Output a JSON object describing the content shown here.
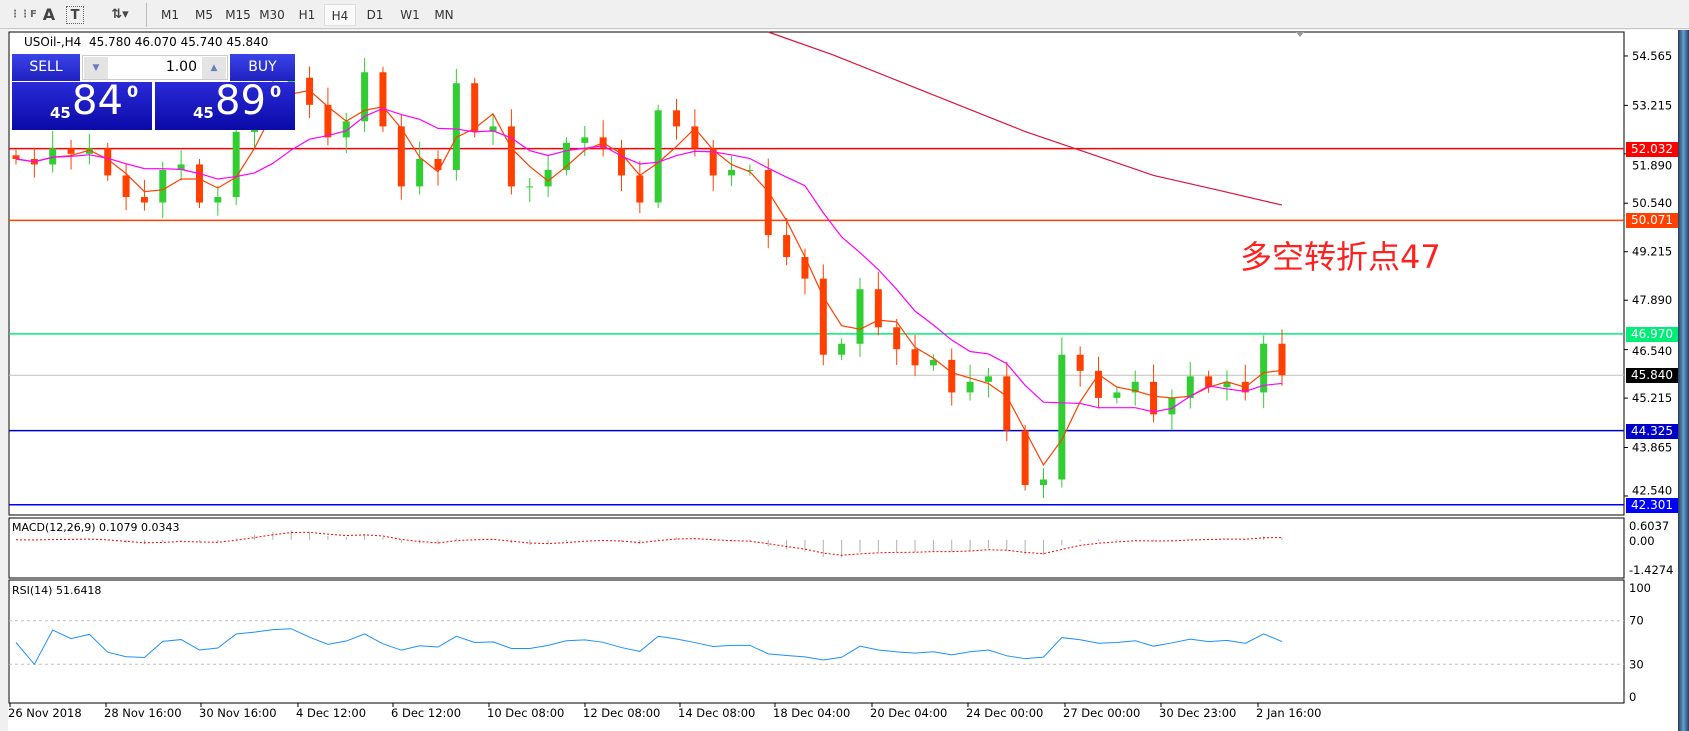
{
  "toolbar": {
    "icons": [
      "grid-icon",
      "text-icon",
      "text-label-icon",
      "arrows-icon"
    ],
    "icon_text": {
      "text": "A",
      "label": "T"
    },
    "timeframes": [
      "M1",
      "M5",
      "M15",
      "M30",
      "H1",
      "H4",
      "D1",
      "W1",
      "MN"
    ],
    "selected": "H4"
  },
  "header": {
    "symbol": "USOil-,H4",
    "ohlc": "45.780 46.070 45.740 45.840"
  },
  "trade_panel": {
    "sell_label": "SELL",
    "buy_label": "BUY",
    "lot": "1.00",
    "sell": {
      "prefix": "45",
      "big": "84",
      "sup": "0"
    },
    "buy": {
      "prefix": "45",
      "big": "89",
      "sup": "0"
    }
  },
  "annotation": "多空转折点47",
  "colors": {
    "bull": "#32cd32",
    "bear": "#ff4000",
    "ma_fast": "#ff4000",
    "ma_mid": "#ff00ff",
    "ma_long": "#dc143c",
    "level_red": "#ff0000",
    "level_orange": "#ff4000",
    "level_green": "#00ff7f",
    "level_blue": "#0000c8",
    "current": "#c0c0c0"
  },
  "chart_data": [
    {
      "type": "candlestick",
      "symbol": "USOil-",
      "timeframe": "H4",
      "ylim": [
        42.02,
        55.22
      ],
      "y_ticks": [
        "54.565",
        "53.215",
        "51.890",
        "50.540",
        "49.215",
        "47.890",
        "46.540",
        "45.215",
        "43.865",
        "42.540"
      ],
      "x_ticks": [
        "26 Nov 2018",
        "28 Nov 16:00",
        "30 Nov 16:00",
        "4 Dec 12:00",
        "6 Dec 12:00",
        "10 Dec 08:00",
        "12 Dec 08:00",
        "14 Dec 08:00",
        "18 Dec 04:00",
        "20 Dec 04:00",
        "24 Dec 00:00",
        "27 Dec 00:00",
        "30 Dec 23:00",
        "2 Jan 16:00"
      ],
      "closes": [
        51.75,
        51.6,
        52.04,
        51.89,
        52.04,
        51.3,
        50.71,
        50.56,
        51.45,
        51.6,
        50.56,
        50.71,
        52.49,
        52.93,
        53.67,
        53.97,
        53.23,
        52.34,
        52.78,
        54.12,
        52.64,
        51.0,
        51.75,
        51.45,
        53.82,
        52.49,
        52.64,
        51.0,
        51.0,
        51.45,
        52.19,
        52.34,
        52.04,
        51.3,
        50.56,
        53.08,
        52.64,
        52.04,
        51.3,
        51.45,
        51.45,
        49.67,
        49.07,
        48.48,
        46.4,
        46.7,
        48.19,
        47.15,
        46.55,
        46.11,
        46.26,
        45.37,
        45.66,
        45.81,
        44.33,
        42.84,
        42.99,
        46.4,
        45.96,
        45.22,
        45.37,
        45.66,
        44.77,
        45.22,
        45.81,
        45.51,
        45.66,
        45.37,
        46.7,
        45.84
      ],
      "ma_long": [
        55.22,
        54.6,
        53.9,
        53.2,
        52.5,
        51.9,
        51.3,
        50.9,
        50.49
      ],
      "levels": [
        {
          "price": "52.032",
          "color": "#ff0000"
        },
        {
          "price": "50.071",
          "color": "#ff4000"
        },
        {
          "price": "46.970",
          "color": "#00ee77"
        },
        {
          "price": "45.840",
          "color": "#000000",
          "line": "#c0c0c0"
        },
        {
          "price": "44.325",
          "color": "#0000c8"
        },
        {
          "price": "42.301",
          "color": "#0000ff"
        }
      ]
    },
    {
      "type": "bar",
      "title": "MACD(12,26,9) 0.1079 0.0343",
      "y_ticks": [
        "0.6037",
        "0.00",
        "-1.4274"
      ],
      "ylim": [
        -1.4274,
        0.6037
      ]
    },
    {
      "type": "line",
      "title": "RSI(14) 51.6418",
      "y_ticks": [
        "100",
        "70",
        "30",
        "0"
      ],
      "ylim": [
        0,
        100
      ],
      "levels": [
        70,
        30
      ]
    }
  ]
}
